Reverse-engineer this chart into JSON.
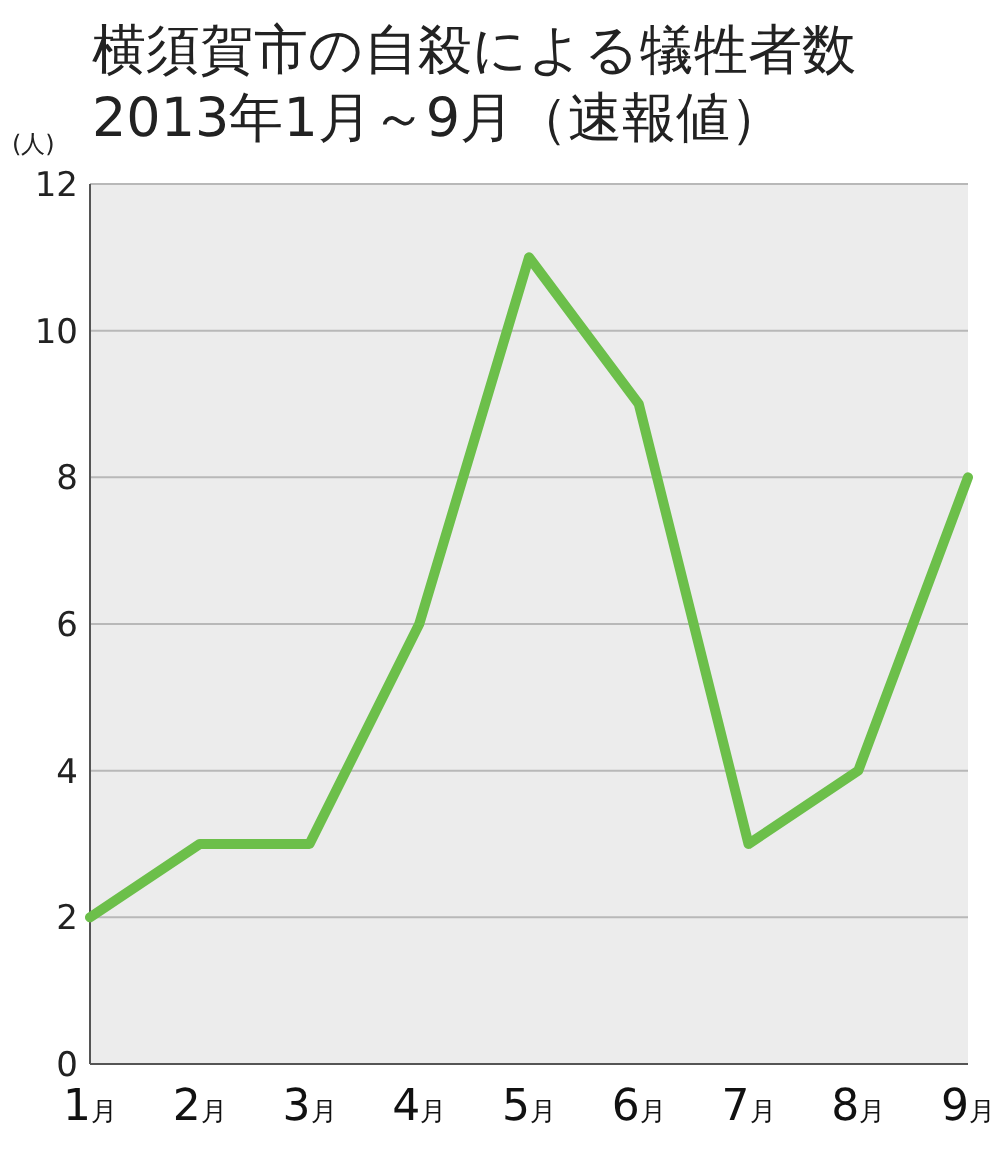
{
  "chart_data": {
    "type": "line",
    "title": "横須賀市の自殺による犠牲者数",
    "subtitle": "2013年1月～9月（速報値）",
    "ylabel": "(人)",
    "categories": [
      "1月",
      "2月",
      "3月",
      "4月",
      "5月",
      "6月",
      "7月",
      "8月",
      "9月"
    ],
    "series": [
      {
        "color": "#6cbf4a",
        "values": [
          2,
          3,
          3,
          6,
          11,
          9,
          3,
          4,
          8
        ]
      }
    ],
    "ylim": [
      0,
      12
    ],
    "yticks": [
      0,
      2,
      4,
      6,
      8,
      10,
      12
    ],
    "grid": "y",
    "line_style": "solid"
  }
}
